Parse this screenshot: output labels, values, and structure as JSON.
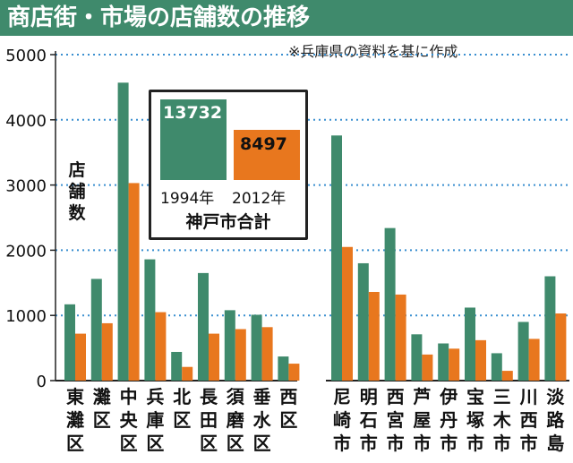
{
  "header": {
    "title": "商店街・市場の店舗数の推移"
  },
  "source_note": "※兵庫県の資料を基に作成",
  "inset": {
    "value_1994": "13732",
    "value_2012": "8497",
    "year_1994": "1994年",
    "year_2012": "2012年",
    "total_label": "神戸市合計"
  },
  "y_label_chars": [
    "店",
    "舗",
    "数"
  ],
  "colors": {
    "series_1994": "#3f8a6c",
    "series_2012": "#e8771e",
    "header": "#3f8a6c",
    "grid": "#3a8fd0"
  },
  "chart_data": {
    "type": "bar",
    "ylabel": "店舗数",
    "ylim": [
      0,
      5000
    ],
    "yticks": [
      0,
      1000,
      2000,
      3000,
      4000,
      5000
    ],
    "grid": "dotted horizontal",
    "categories": [
      "東灘区",
      "灘区",
      "中央区",
      "兵庫区",
      "北区",
      "長田区",
      "須磨区",
      "垂水区",
      "西区",
      "尼崎市",
      "明石市",
      "西宮市",
      "芦屋市",
      "伊丹市",
      "宝塚市",
      "三木市",
      "川西市",
      "淡路島"
    ],
    "series": [
      {
        "name": "1994年",
        "values": [
          1170,
          1560,
          4570,
          1860,
          440,
          1650,
          1080,
          1010,
          370,
          3760,
          1800,
          2340,
          710,
          570,
          1120,
          420,
          900,
          1600
        ]
      },
      {
        "name": "2012年",
        "values": [
          720,
          880,
          3030,
          1050,
          210,
          720,
          790,
          820,
          260,
          2050,
          1360,
          1320,
          400,
          490,
          620,
          150,
          640,
          1030
        ]
      }
    ]
  }
}
